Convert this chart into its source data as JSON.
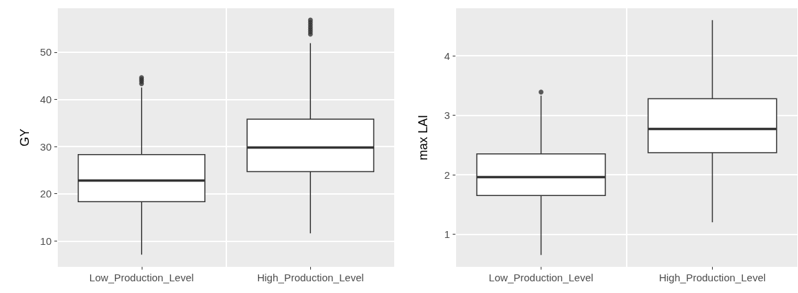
{
  "chart_data": [
    {
      "type": "box",
      "ylabel": "GY",
      "categories": [
        "Low_Production_Level",
        "High_Production_Level"
      ],
      "color": "#333333",
      "ylim": [
        4.5,
        59.3
      ],
      "yticks": [
        10,
        20,
        30,
        40,
        50
      ],
      "grid": true,
      "boxes": [
        {
          "low": 7.1,
          "q1": 18.3,
          "median": 22.8,
          "q3": 28.3,
          "high": 42.5,
          "outliers": [
            43.3,
            43.8,
            44.2,
            44.6
          ]
        },
        {
          "low": 11.6,
          "q1": 24.7,
          "median": 29.8,
          "q3": 35.8,
          "high": 51.9,
          "outliers": [
            53.8,
            54.3,
            54.8,
            55.3,
            55.8,
            56.3,
            56.8
          ]
        }
      ]
    },
    {
      "type": "box",
      "ylabel": "max LAI",
      "categories": [
        "Low_Production_Level",
        "High_Production_Level"
      ],
      "color": "#333333",
      "ylim": [
        0.45,
        4.8
      ],
      "yticks": [
        1,
        2,
        3,
        4
      ],
      "grid": true,
      "boxes": [
        {
          "low": 0.65,
          "q1": 1.65,
          "median": 1.96,
          "q3": 2.35,
          "high": 3.33,
          "outliers": [
            3.39
          ]
        },
        {
          "low": 1.2,
          "q1": 2.37,
          "median": 2.77,
          "q3": 3.28,
          "high": 4.6
        }
      ]
    }
  ]
}
